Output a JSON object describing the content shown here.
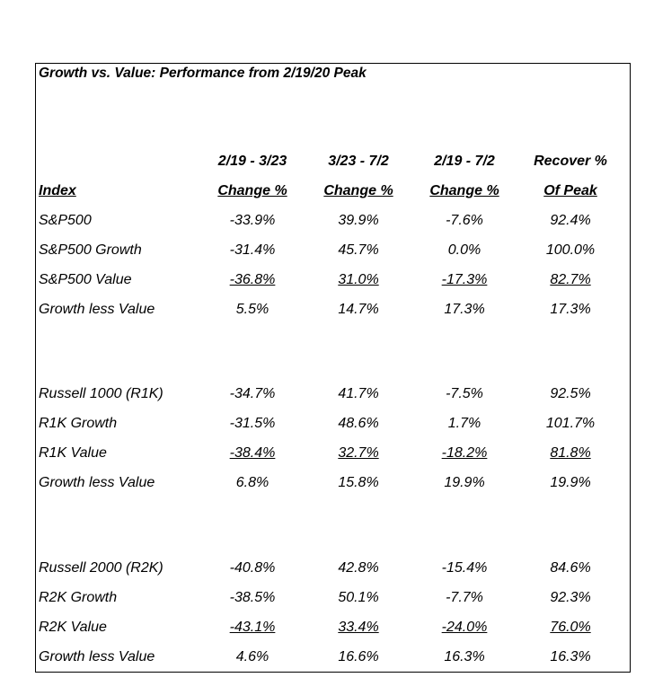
{
  "title": "Growth vs. Value: Performance from 2/19/20 Peak",
  "headers": {
    "index_label": "Index",
    "columns": [
      {
        "line1": "2/19 - 3/23",
        "line2": "Change %"
      },
      {
        "line1": "3/23 - 7/2",
        "line2": "Change %"
      },
      {
        "line1": "2/19 - 7/2",
        "line2": "Change %"
      },
      {
        "line1": "Recover %",
        "line2": "Of Peak"
      }
    ]
  },
  "groups": [
    {
      "rows": [
        {
          "label": "S&P500",
          "values": [
            "-33.9%",
            "39.9%",
            "-7.6%",
            "92.4%"
          ],
          "underline": false
        },
        {
          "label": "S&P500 Growth",
          "values": [
            "-31.4%",
            "45.7%",
            "0.0%",
            "100.0%"
          ],
          "underline": false
        },
        {
          "label": "S&P500 Value",
          "values": [
            "-36.8%",
            "31.0%",
            "-17.3%",
            "82.7%"
          ],
          "underline": true
        },
        {
          "label": "Growth less Value",
          "values": [
            "5.5%",
            "14.7%",
            "17.3%",
            "17.3%"
          ],
          "underline": false
        }
      ]
    },
    {
      "rows": [
        {
          "label": "Russell 1000 (R1K)",
          "values": [
            "-34.7%",
            "41.7%",
            "-7.5%",
            "92.5%"
          ],
          "underline": false
        },
        {
          "label": "R1K Growth",
          "values": [
            "-31.5%",
            "48.6%",
            "1.7%",
            "101.7%"
          ],
          "underline": false
        },
        {
          "label": "R1K Value",
          "values": [
            "-38.4%",
            "32.7%",
            "-18.2%",
            "81.8%"
          ],
          "underline": true
        },
        {
          "label": "Growth less Value",
          "values": [
            "6.8%",
            "15.8%",
            "19.9%",
            "19.9%"
          ],
          "underline": false
        }
      ]
    },
    {
      "rows": [
        {
          "label": "Russell 2000 (R2K)",
          "values": [
            "-40.8%",
            "42.8%",
            "-15.4%",
            "84.6%"
          ],
          "underline": false
        },
        {
          "label": "R2K Growth",
          "values": [
            "-38.5%",
            "50.1%",
            "-7.7%",
            "92.3%"
          ],
          "underline": false
        },
        {
          "label": "R2K Value",
          "values": [
            "-43.1%",
            "33.4%",
            "-24.0%",
            "76.0%"
          ],
          "underline": true
        },
        {
          "label": "Growth less Value",
          "values": [
            "4.6%",
            "16.6%",
            "16.3%",
            "16.3%"
          ],
          "underline": false
        }
      ]
    }
  ]
}
